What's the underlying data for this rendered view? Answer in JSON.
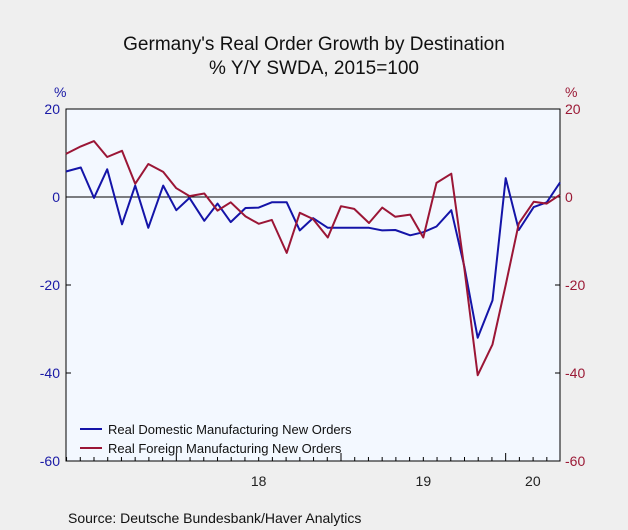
{
  "chart_data": {
    "type": "line",
    "title": "Germany's Real Order Growth by Destination",
    "subtitle": "% Y/Y   SWDA, 2015=100",
    "ylabel_left": "%",
    "ylabel_right": "%",
    "ylim": [
      -60,
      20
    ],
    "yticks": [
      20,
      0,
      -20,
      -40,
      -60
    ],
    "xlim": [
      2017.33,
      2020.33
    ],
    "xticks": [
      {
        "label": "18",
        "value": 2018
      },
      {
        "label": "19",
        "value": 2019
      },
      {
        "label": "20",
        "value": 2020
      }
    ],
    "grid": false,
    "legend_position": "bottom-left",
    "zero_line": true,
    "series": [
      {
        "name": "Real Domestic Manufacturing New Orders",
        "color": "#1414a8",
        "x": [
          2017.33,
          2017.42,
          2017.5,
          2017.58,
          2017.67,
          2017.75,
          2017.83,
          2017.92,
          2018.0,
          2018.08,
          2018.17,
          2018.25,
          2018.33,
          2018.42,
          2018.5,
          2018.58,
          2018.67,
          2018.75,
          2018.83,
          2018.92,
          2019.0,
          2019.08,
          2019.17,
          2019.25,
          2019.33,
          2019.42,
          2019.5,
          2019.58,
          2019.67,
          2019.75,
          2019.83,
          2019.92,
          2020.0,
          2020.08,
          2020.17,
          2020.25,
          2020.33
        ],
        "values": [
          5.8,
          6.7,
          -0.2,
          6.3,
          -6.2,
          2.6,
          -7.0,
          2.6,
          -3.0,
          -0.2,
          -5.4,
          -1.5,
          -5.7,
          -2.5,
          -2.4,
          -1.2,
          -1.2,
          -7.6,
          -4.8,
          -7.0,
          -7.0,
          -7.0,
          -7.0,
          -7.6,
          -7.5,
          -8.7,
          -8.0,
          -6.7,
          -3.0,
          -16.0,
          -32.0,
          -23.5,
          4.3,
          -7.5,
          -2.3,
          -1.2,
          3.3
        ]
      },
      {
        "name": "Real Foreign Manufacturing New Orders",
        "color": "#9b1636",
        "x": [
          2017.33,
          2017.42,
          2017.5,
          2017.58,
          2017.67,
          2017.75,
          2017.83,
          2017.92,
          2018.0,
          2018.08,
          2018.17,
          2018.25,
          2018.33,
          2018.42,
          2018.5,
          2018.58,
          2018.67,
          2018.75,
          2018.83,
          2018.92,
          2019.0,
          2019.08,
          2019.17,
          2019.25,
          2019.33,
          2019.42,
          2019.5,
          2019.58,
          2019.67,
          2019.75,
          2019.83,
          2019.92,
          2020.0,
          2020.08,
          2020.17,
          2020.25,
          2020.33
        ],
        "values": [
          9.8,
          11.5,
          12.7,
          9.1,
          10.5,
          3.0,
          7.5,
          5.7,
          2.0,
          0.2,
          0.8,
          -3.1,
          -1.2,
          -4.4,
          -6.1,
          -5.2,
          -12.7,
          -3.6,
          -5.0,
          -9.2,
          -2.1,
          -2.7,
          -5.9,
          -2.4,
          -4.5,
          -4.0,
          -9.2,
          3.2,
          5.3,
          -16.5,
          -40.5,
          -33.5,
          -20.0,
          -6.0,
          -1.1,
          -1.5,
          0.5
        ]
      }
    ],
    "source": "Source:   Deutsche Bundesbank/Haver Analytics"
  }
}
